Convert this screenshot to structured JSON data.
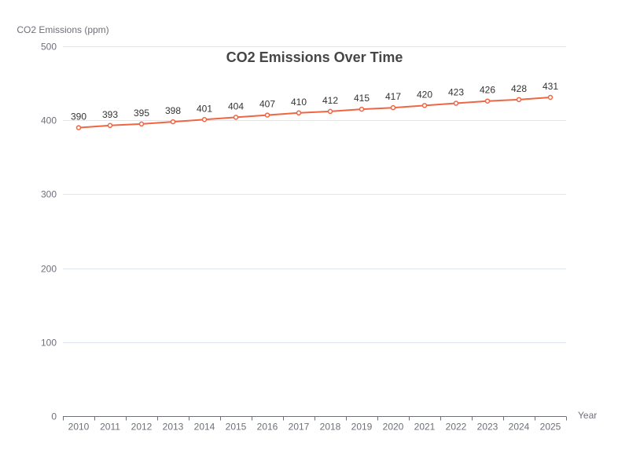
{
  "chart_data": {
    "type": "line",
    "title": "CO2 Emissions Over Time",
    "xlabel": "Year",
    "ylabel": "CO2 Emissions (ppm)",
    "categories": [
      "2010",
      "2011",
      "2012",
      "2013",
      "2014",
      "2015",
      "2016",
      "2017",
      "2018",
      "2019",
      "2020",
      "2021",
      "2022",
      "2023",
      "2024",
      "2025"
    ],
    "series": [
      {
        "values": [
          390,
          393,
          395,
          398,
          401,
          404,
          407,
          410,
          412,
          415,
          417,
          420,
          423,
          426,
          428,
          431
        ],
        "color": "#ee6644"
      }
    ],
    "ylim": [
      0,
      500
    ],
    "yticks": [
      0,
      100,
      200,
      300,
      400,
      500
    ],
    "grid": true,
    "data_labels": true
  }
}
